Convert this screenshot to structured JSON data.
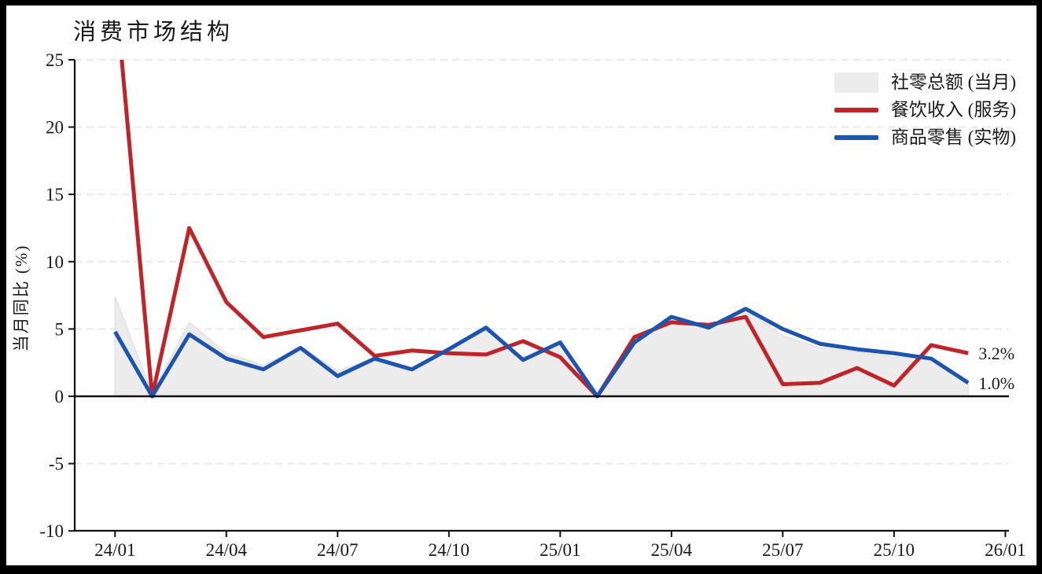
{
  "title": "消费市场结构",
  "colors": {
    "restaurant_line": "#bf2428",
    "goods_line": "#1d54ae",
    "total_area_fill": "#ececec",
    "total_area_edge": "#e2e2e2",
    "gridline": "#e9e9e9",
    "axis": "#111111",
    "text": "#1a1a1a",
    "frame": "#000000",
    "background": "#ffffff"
  },
  "chart_data": {
    "type": "line",
    "title": "消费市场结构",
    "xlabel": "",
    "ylabel": "当月同比 (%)",
    "ylim": [
      -10,
      25
    ],
    "ytick_interval": 5,
    "ytick_labels": [
      "25",
      "20",
      "15",
      "10",
      "5",
      "0",
      "-5",
      "-10"
    ],
    "grid": "horizontal-dashed",
    "grid_levels": [
      25,
      20,
      15,
      10,
      5,
      -5
    ],
    "legend_position": "top-right",
    "x_tick_labels": [
      "24/01",
      "24/04",
      "24/07",
      "24/10",
      "25/01",
      "25/04",
      "25/07",
      "25/10",
      "26/01"
    ],
    "months": [
      "24/01",
      "24/02",
      "24/03",
      "24/04",
      "24/05",
      "24/06",
      "24/07",
      "24/08",
      "24/09",
      "24/10",
      "24/11",
      "24/12",
      "25/01",
      "25/02",
      "25/03",
      "25/04",
      "25/05",
      "25/06",
      "25/07",
      "25/08",
      "25/09",
      "25/10",
      "25/11",
      "25/12"
    ],
    "series": [
      {
        "name": "社零总额 (当月)",
        "style": "area",
        "color": "#ececec",
        "values": [
          7.4,
          0.2,
          5.5,
          3.2,
          2.3,
          3.7,
          1.9,
          2.8,
          2.1,
          3.5,
          4.9,
          2.9,
          3.9,
          0.1,
          4.0,
          5.8,
          5.1,
          6.4,
          4.5,
          3.6,
          3.3,
          2.9,
          2.9,
          0.9
        ]
      },
      {
        "name": "餐饮收入 (服务)",
        "style": "line",
        "color": "#bf2428",
        "values": [
          30.5,
          0,
          12.5,
          7.0,
          4.4,
          4.9,
          5.4,
          3.0,
          3.4,
          3.2,
          3.1,
          4.1,
          2.9,
          0,
          4.4,
          5.5,
          5.3,
          5.9,
          0.9,
          1.0,
          2.1,
          0.8,
          3.8,
          3.2
        ]
      },
      {
        "name": "商品零售 (实物)",
        "style": "line",
        "color": "#1d54ae",
        "values": [
          4.8,
          0,
          4.6,
          2.8,
          2.0,
          3.6,
          1.5,
          2.8,
          2.0,
          3.5,
          5.1,
          2.7,
          4.0,
          0,
          4.0,
          5.9,
          5.1,
          6.5,
          5.0,
          3.9,
          3.5,
          3.2,
          2.8,
          1.0
        ]
      }
    ],
    "annotations": [
      {
        "text": "3.2%",
        "value": 3.2,
        "color": "#bf2428"
      },
      {
        "text": "1.0%",
        "value": 1.0,
        "color": "#1d54ae"
      }
    ]
  }
}
